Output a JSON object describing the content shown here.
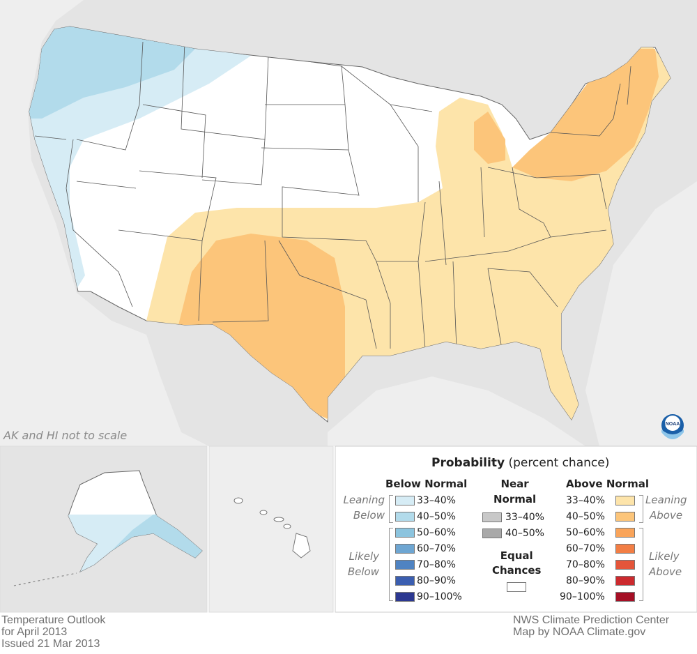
{
  "map": {
    "scale_note": "AK and HI not to scale",
    "logo_text": "NOAA",
    "colors": {
      "background": "#e4e4e4",
      "ocean": "#f1f1f1",
      "equal_chances": "#ffffff",
      "below_33_40": "#d6ecf5",
      "below_40_50": "#b2dbeb",
      "above_33_40": "#fde4aa",
      "above_40_50": "#fcc57a"
    }
  },
  "legend": {
    "title": "Probability",
    "title_suffix": "(percent chance)",
    "below": {
      "heading": "Below Normal",
      "leaning_label": [
        "Leaning",
        "Below"
      ],
      "likely_label": [
        "Likely",
        "Below"
      ],
      "items": [
        {
          "label": "33–40%",
          "color": "#d6ecf5"
        },
        {
          "label": "40–50%",
          "color": "#b2dbeb"
        },
        {
          "label": "50–60%",
          "color": "#8cc4de"
        },
        {
          "label": "60–70%",
          "color": "#6ea6d2"
        },
        {
          "label": "70–80%",
          "color": "#4f83c2"
        },
        {
          "label": "80–90%",
          "color": "#3b5eb0"
        },
        {
          "label": "90–100%",
          "color": "#2c3891"
        }
      ]
    },
    "near": {
      "heading": [
        "Near",
        "Normal"
      ],
      "items": [
        {
          "label": "33–40%",
          "color": "#c8c8c8"
        },
        {
          "label": "40–50%",
          "color": "#a9a9a9"
        }
      ],
      "equal_heading": [
        "Equal",
        "Chances"
      ],
      "equal_color": "#ffffff"
    },
    "above": {
      "heading": "Above Normal",
      "leaning_label": [
        "Leaning",
        "Above"
      ],
      "likely_label": [
        "Likely",
        "Above"
      ],
      "items": [
        {
          "label": "33–40%",
          "color": "#fde4aa"
        },
        {
          "label": "40–50%",
          "color": "#fcc57a"
        },
        {
          "label": "50–60%",
          "color": "#f9a45a"
        },
        {
          "label": "60–70%",
          "color": "#f27e45"
        },
        {
          "label": "70–80%",
          "color": "#e4553a"
        },
        {
          "label": "80–90%",
          "color": "#cc2a2e"
        },
        {
          "label": "90–100%",
          "color": "#a50f25"
        }
      ]
    }
  },
  "credits": {
    "left": [
      "Temperature Outlook",
      "for April 2013",
      "Issued 21 Mar 2013"
    ],
    "right": [
      "NWS Climate Prediction Center",
      "Map by NOAA Climate.gov"
    ]
  }
}
